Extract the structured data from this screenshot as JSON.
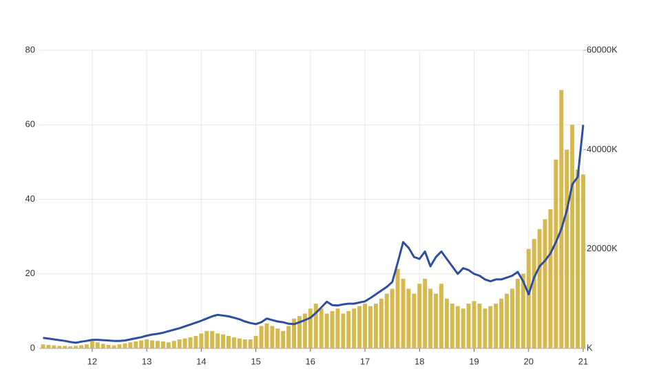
{
  "chart_data": {
    "type": "line",
    "x": [
      11.1,
      11.2,
      11.3,
      11.4,
      11.5,
      11.6,
      11.7,
      11.8,
      11.9,
      12.0,
      12.1,
      12.2,
      12.3,
      12.4,
      12.5,
      12.6,
      12.7,
      12.8,
      12.9,
      13.0,
      13.1,
      13.2,
      13.3,
      13.4,
      13.5,
      13.6,
      13.7,
      13.8,
      13.9,
      14.0,
      14.1,
      14.2,
      14.3,
      14.4,
      14.5,
      14.6,
      14.7,
      14.8,
      14.9,
      15.0,
      15.1,
      15.2,
      15.3,
      15.4,
      15.5,
      15.6,
      15.7,
      15.8,
      15.9,
      16.0,
      16.1,
      16.2,
      16.3,
      16.4,
      16.5,
      16.6,
      16.7,
      16.8,
      16.9,
      17.0,
      17.1,
      17.2,
      17.3,
      17.4,
      17.5,
      17.6,
      17.7,
      17.8,
      17.9,
      18.0,
      18.1,
      18.2,
      18.3,
      18.4,
      18.5,
      18.6,
      18.7,
      18.8,
      18.9,
      19.0,
      19.1,
      19.2,
      19.3,
      19.4,
      19.5,
      19.6,
      19.7,
      19.8,
      19.9,
      20.0,
      20.1,
      20.2,
      20.3,
      20.4,
      20.5,
      20.6,
      20.7,
      20.8,
      20.9,
      21.0
    ],
    "series": [
      {
        "type": "bar",
        "axis": "y2",
        "color": "#d6b94c",
        "values": [
          800,
          700,
          600,
          500,
          500,
          400,
          500,
          600,
          800,
          1500,
          1200,
          900,
          700,
          600,
          800,
          1000,
          1200,
          1400,
          1600,
          1800,
          1600,
          1500,
          1400,
          1200,
          1500,
          1800,
          2000,
          2200,
          2500,
          3000,
          3500,
          3500,
          3000,
          2800,
          2500,
          2200,
          2000,
          1800,
          1800,
          2500,
          4500,
          5000,
          4500,
          4000,
          3500,
          4500,
          6000,
          6500,
          7000,
          8000,
          9000,
          8000,
          7000,
          7500,
          8000,
          7000,
          7500,
          8000,
          8500,
          9000,
          8500,
          9000,
          10000,
          11000,
          12000,
          16000,
          14000,
          12000,
          11000,
          13000,
          14000,
          12000,
          11000,
          13000,
          10000,
          9000,
          8500,
          8000,
          9000,
          9500,
          9000,
          8000,
          8500,
          9000,
          10000,
          11000,
          12000,
          14000,
          15000,
          20000,
          22000,
          24000,
          26000,
          28000,
          38000,
          52000,
          40000,
          45000,
          36000,
          35000
        ]
      },
      {
        "type": "line",
        "color": "#2f4ea3",
        "values": [
          2.8,
          2.6,
          2.4,
          2.2,
          2.0,
          1.7,
          1.5,
          1.8,
          2.0,
          2.3,
          2.3,
          2.2,
          2.1,
          2.0,
          2.0,
          2.1,
          2.4,
          2.7,
          3.0,
          3.4,
          3.7,
          3.9,
          4.2,
          4.6,
          5.0,
          5.4,
          5.9,
          6.4,
          6.9,
          7.4,
          8.0,
          8.6,
          9.0,
          8.8,
          8.6,
          8.2,
          7.8,
          7.2,
          6.8,
          6.5,
          7.0,
          8.0,
          7.6,
          7.2,
          7.0,
          6.6,
          6.5,
          7.0,
          7.6,
          8.2,
          9.5,
          11.0,
          12.5,
          11.6,
          11.5,
          11.8,
          12.0,
          12.0,
          12.3,
          12.6,
          13.5,
          14.5,
          15.5,
          16.5,
          17.8,
          23.0,
          28.5,
          27.0,
          24.5,
          24.0,
          26.0,
          22.0,
          24.5,
          26.0,
          24.0,
          22.0,
          20.0,
          21.5,
          21.0,
          20.0,
          19.5,
          18.5,
          18.0,
          18.5,
          18.5,
          19.0,
          19.5,
          20.5,
          18.0,
          14.5,
          19.0,
          22.0,
          23.5,
          25.5,
          28.5,
          32.0,
          37.0,
          44.0,
          46.0,
          60.0
        ]
      }
    ],
    "xlim": [
      11.03,
      21.0
    ],
    "xticks": [
      12,
      13,
      14,
      15,
      16,
      17,
      18,
      19,
      20,
      21
    ],
    "ylim": [
      0,
      80
    ],
    "yticks": [
      0,
      20,
      40,
      60,
      80
    ],
    "y2lim": [
      0,
      60000
    ],
    "y2ticks": [
      {
        "value": 0,
        "label": "K"
      },
      {
        "value": 20000,
        "label": "20000K"
      },
      {
        "value": 40000,
        "label": "40000K"
      },
      {
        "value": 60000,
        "label": "60000K"
      }
    ],
    "grid": true
  }
}
